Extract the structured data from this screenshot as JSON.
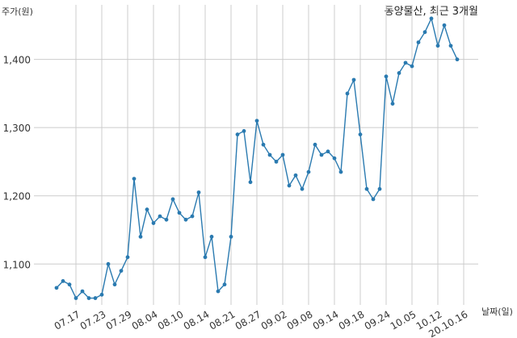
{
  "chart_data": {
    "type": "line",
    "title": "동양물산, 최근 3개월",
    "ylabel": "주가(원)",
    "xlabel": "날짜(일)",
    "ylim": [
      1040,
      1480
    ],
    "yticks": [
      1100,
      1200,
      1300,
      1400
    ],
    "ytick_labels": [
      "1,100",
      "1,200",
      "1,300",
      "1,400"
    ],
    "xtick_labels": [
      "07.17",
      "07.23",
      "07.29",
      "08.04",
      "08.10",
      "08.14",
      "08.21",
      "08.27",
      "09.02",
      "09.08",
      "09.14",
      "09.18",
      "09.24",
      "10.05",
      "10.12",
      "20.10.16"
    ],
    "xtick_index": [
      3,
      7,
      11,
      15,
      19,
      23,
      27,
      31,
      35,
      39,
      43,
      47,
      51,
      55,
      59,
      63
    ],
    "grid": true,
    "line_color": "#2a7ab0",
    "series": [
      {
        "values": [
          1065,
          1075,
          1070,
          1050,
          1060,
          1050,
          1050,
          1055,
          1100,
          1070,
          1090,
          1110,
          1225,
          1140,
          1180,
          1160,
          1170,
          1165,
          1195,
          1175,
          1165,
          1170,
          1205,
          1110,
          1140,
          1060,
          1070,
          1140,
          1290,
          1295,
          1220,
          1310,
          1275,
          1260,
          1250,
          1260,
          1215,
          1230,
          1210,
          1235,
          1275,
          1260,
          1265,
          1255,
          1235,
          1350,
          1370,
          1290,
          1210,
          1195,
          1210,
          1375,
          1335,
          1380,
          1395,
          1390,
          1425,
          1440,
          1460,
          1420,
          1450,
          1420,
          1400
        ]
      }
    ]
  }
}
